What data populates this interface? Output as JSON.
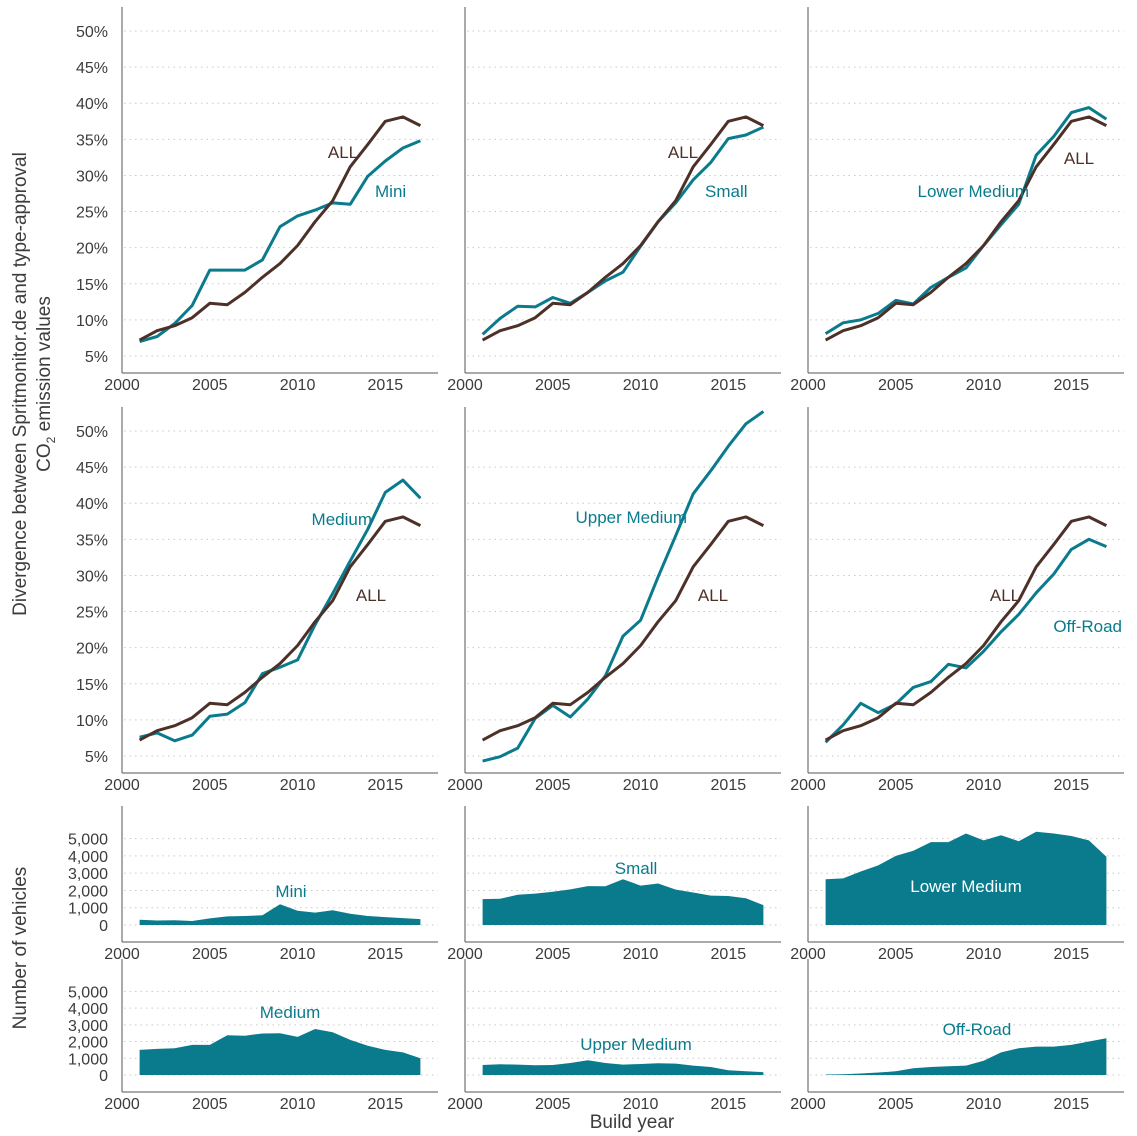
{
  "chart_data": {
    "type": "line",
    "colors": {
      "all": "#4d3129",
      "segment": "#0a7b8c"
    },
    "years": [
      2001,
      2002,
      2003,
      2004,
      2005,
      2006,
      2007,
      2008,
      2009,
      2010,
      2011,
      2012,
      2013,
      2014,
      2015,
      2016,
      2017
    ],
    "x_ticks": [
      "2000",
      "2005",
      "2010",
      "2015"
    ],
    "xlim": [
      2000,
      2018
    ],
    "xlabel": "Build year",
    "divergence": {
      "ylabel_line1": "Divergence between Spritmonitor.de and type-approval",
      "ylabel_line2_prefix": "CO",
      "ylabel_line2_sub": "2",
      "ylabel_line2_suffix": " emission values",
      "ylim": [
        5,
        50
      ],
      "y_ticks": [
        "5%",
        "10%",
        "15%",
        "20%",
        "25%",
        "30%",
        "35%",
        "40%",
        "45%",
        "50%"
      ],
      "all_label": "ALL",
      "all_values": [
        7.2,
        8.5,
        9.2,
        10.3,
        12.3,
        12.1,
        13.8,
        15.9,
        17.8,
        20.3,
        23.6,
        26.5,
        31.2,
        34.3,
        37.5,
        38.1,
        36.9
      ],
      "panels": [
        {
          "segment": "Mini",
          "values": [
            7.0,
            7.7,
            9.5,
            12.0,
            16.9,
            16.9,
            16.9,
            18.3,
            22.9,
            24.4,
            25.2,
            26.2,
            26.0,
            29.9,
            32.0,
            33.8,
            34.8
          ]
        },
        {
          "segment": "Small",
          "values": [
            8.0,
            10.2,
            11.9,
            11.8,
            13.1,
            12.3,
            13.8,
            15.4,
            16.6,
            20.2,
            23.6,
            26.2,
            29.4,
            31.8,
            35.1,
            35.6,
            36.7
          ]
        },
        {
          "segment": "Lower Medium",
          "values": [
            8.1,
            9.6,
            10.0,
            10.9,
            12.7,
            12.2,
            14.5,
            15.9,
            17.2,
            20.3,
            23.2,
            26.0,
            32.8,
            35.4,
            38.7,
            39.4,
            37.8
          ]
        },
        {
          "segment": "Medium",
          "values": [
            7.6,
            8.2,
            7.1,
            7.9,
            10.5,
            10.8,
            12.4,
            16.4,
            17.3,
            18.3,
            23.2,
            27.5,
            32.0,
            36.4,
            41.5,
            43.2,
            40.7
          ]
        },
        {
          "segment": "Upper Medium",
          "values": [
            4.3,
            4.9,
            6.1,
            10.2,
            12.0,
            10.4,
            12.9,
            16.1,
            21.6,
            23.8,
            29.8,
            35.5,
            41.3,
            44.5,
            47.9,
            51.0,
            52.7
          ]
        },
        {
          "segment": "Off-Road",
          "values": [
            6.9,
            9.3,
            12.3,
            11.0,
            12.2,
            14.5,
            15.3,
            17.7,
            17.2,
            19.5,
            22.2,
            24.6,
            27.6,
            30.2,
            33.6,
            35.0,
            34.0
          ]
        }
      ]
    },
    "vehicles": {
      "ylabel": "Number of vehicles",
      "ylim": [
        0,
        5500
      ],
      "y_ticks": [
        "0",
        "1,000",
        "2,000",
        "3,000",
        "4,000",
        "5,000"
      ],
      "panels": [
        {
          "segment": "Mini",
          "values": [
            300,
            260,
            280,
            230,
            380,
            500,
            520,
            560,
            1200,
            820,
            720,
            850,
            650,
            520,
            460,
            400,
            340
          ]
        },
        {
          "segment": "Small",
          "values": [
            1500,
            1520,
            1750,
            1820,
            1930,
            2060,
            2250,
            2240,
            2650,
            2280,
            2400,
            2050,
            1880,
            1700,
            1680,
            1550,
            1150
          ]
        },
        {
          "segment": "Lower Medium",
          "values": [
            2650,
            2700,
            3100,
            3450,
            4000,
            4300,
            4800,
            4800,
            5300,
            4900,
            5200,
            4850,
            5400,
            5300,
            5150,
            4900,
            3950
          ]
        },
        {
          "segment": "Medium",
          "values": [
            1500,
            1560,
            1600,
            1800,
            1800,
            2380,
            2350,
            2480,
            2500,
            2280,
            2750,
            2550,
            2100,
            1750,
            1500,
            1350,
            1000
          ]
        },
        {
          "segment": "Upper Medium",
          "values": [
            600,
            640,
            620,
            580,
            600,
            720,
            880,
            720,
            620,
            660,
            700,
            680,
            560,
            480,
            280,
            220,
            170
          ]
        },
        {
          "segment": "Off-Road",
          "values": [
            30,
            50,
            90,
            150,
            220,
            400,
            480,
            520,
            560,
            850,
            1350,
            1600,
            1700,
            1700,
            1800,
            2000,
            2200
          ]
        }
      ]
    }
  }
}
